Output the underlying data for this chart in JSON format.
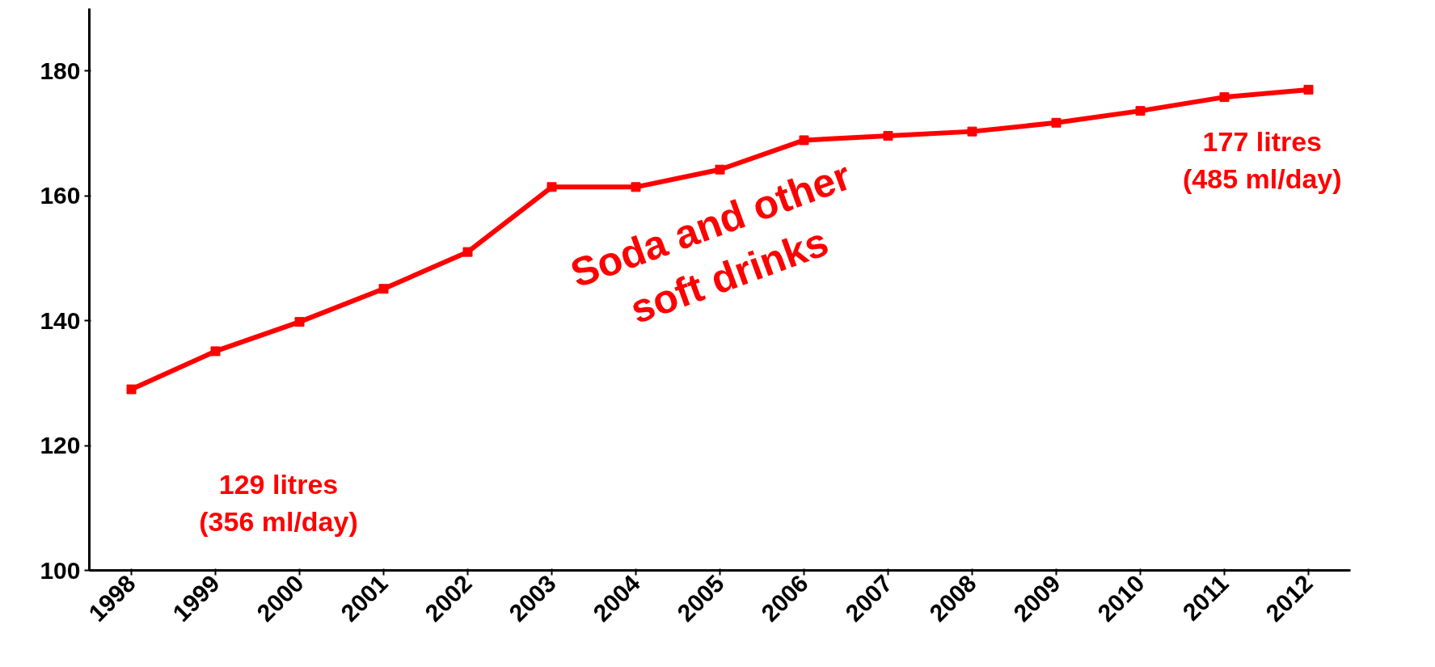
{
  "chart_data": {
    "type": "line",
    "categories": [
      "1998",
      "1999",
      "2000",
      "2001",
      "2002",
      "2003",
      "2004",
      "2005",
      "2006",
      "2007",
      "2008",
      "2009",
      "2010",
      "2011",
      "2012"
    ],
    "series": [
      {
        "color": "#ff0000",
        "values": [
          129,
          135.1,
          139.8,
          145.1,
          151.0,
          161.4,
          161.4,
          164.2,
          168.9,
          169.6,
          170.3,
          171.7,
          173.6,
          175.8,
          177
        ]
      }
    ],
    "ylim": [
      100,
      190
    ],
    "yticks": [
      100,
      120,
      140,
      160,
      180
    ],
    "grid": false,
    "marker": "square",
    "line_style": "solid",
    "annotations": [
      "129 litres\n(356 ml/day)",
      "177 litres\n(485 ml/day)",
      "Soda and other\nsoft drinks"
    ]
  }
}
